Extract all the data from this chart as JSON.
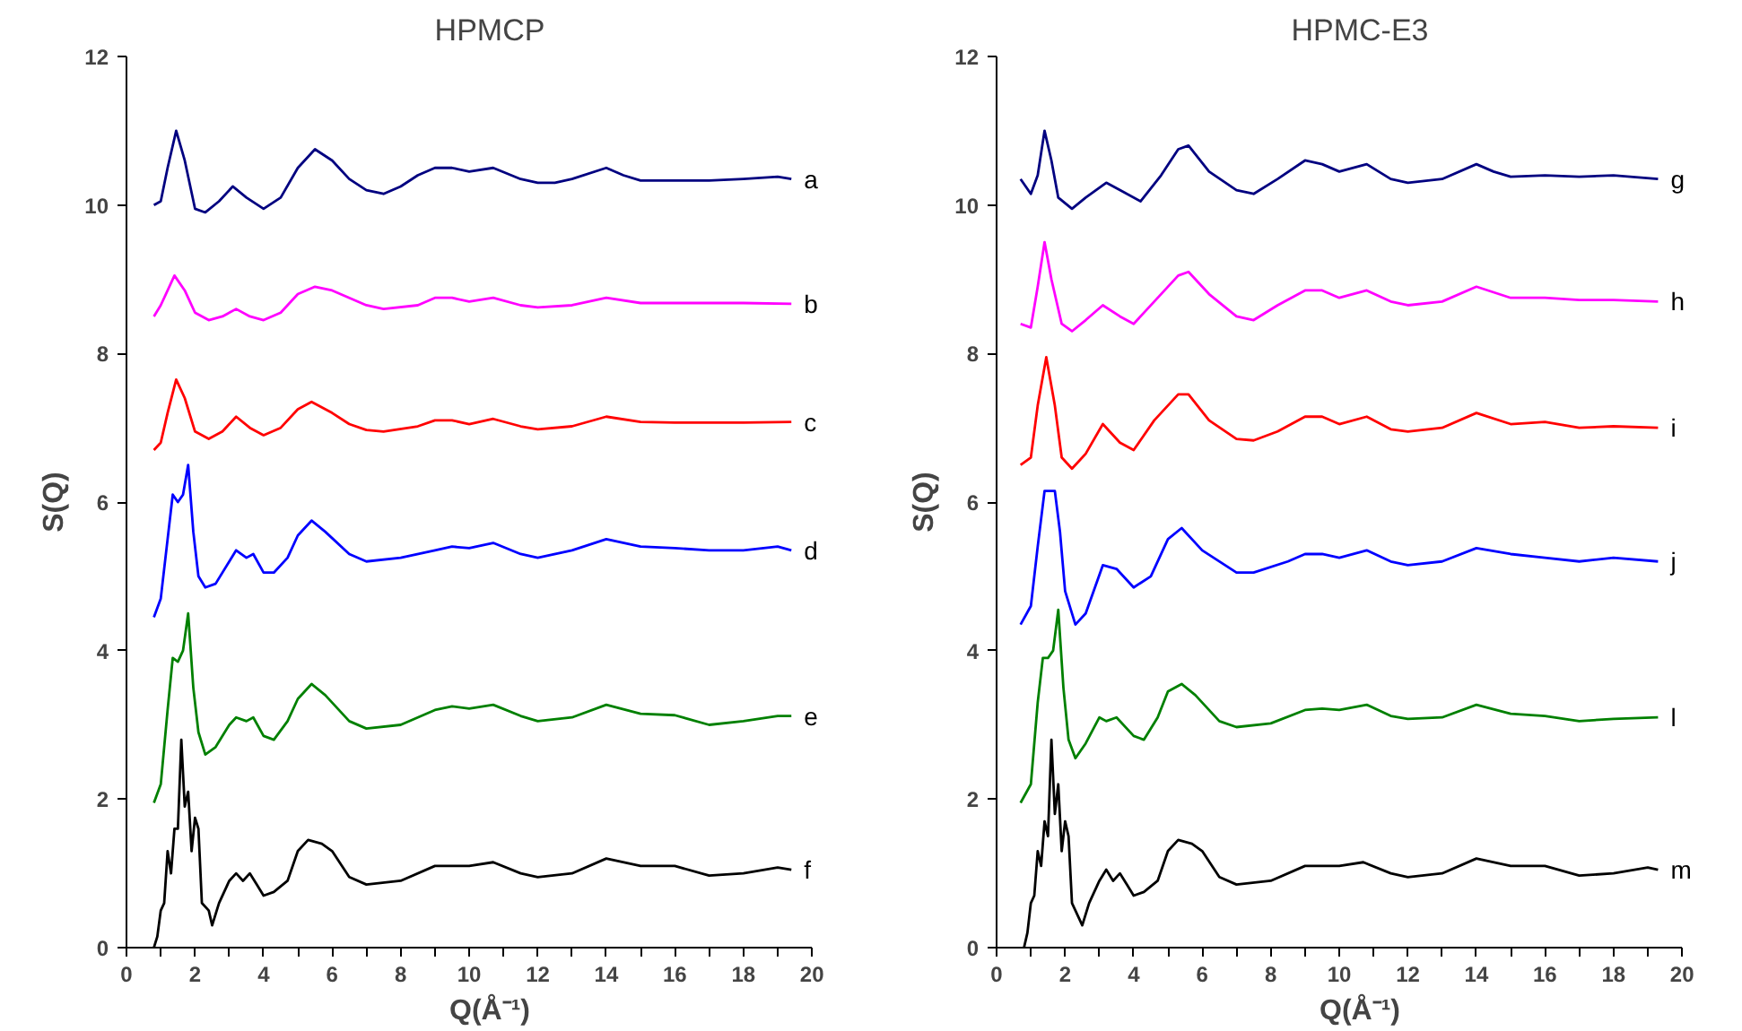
{
  "chart_data": [
    {
      "type": "line",
      "title": "HPMCP",
      "xlabel": "Q(Å⁻¹)",
      "ylabel": "S(Q)",
      "xlim": [
        0,
        20
      ],
      "ylim": [
        0,
        12
      ],
      "xticks": [
        0,
        {
          "value": 1,
          "label": null
        },
        2,
        {
          "value": 3,
          "label": null
        },
        4,
        {
          "value": 5,
          "label": null
        },
        6,
        {
          "value": 7,
          "label": null
        },
        8,
        {
          "value": 9,
          "label": null
        },
        10,
        {
          "value": 11,
          "label": null
        },
        12,
        {
          "value": 13,
          "label": null
        },
        14,
        {
          "value": 15,
          "label": null
        },
        16,
        {
          "value": 17,
          "label": null
        },
        18,
        {
          "value": 19,
          "label": null
        },
        20
      ],
      "yticks": [
        0,
        2,
        4,
        6,
        8,
        10,
        12
      ],
      "series": [
        {
          "name": "a",
          "color": "#000080",
          "x": [
            0.8,
            1.0,
            1.2,
            1.45,
            1.7,
            2.0,
            2.3,
            2.7,
            3.1,
            3.5,
            4.0,
            4.5,
            5.0,
            5.5,
            6.0,
            6.5,
            7.0,
            7.5,
            8.0,
            8.5,
            9.0,
            9.5,
            10.0,
            10.7,
            11.5,
            12.0,
            12.5,
            13.0,
            14.0,
            14.5,
            15.0,
            16.0,
            17.0,
            18.0,
            19.0,
            19.4
          ],
          "values": [
            10.0,
            10.05,
            10.5,
            11.0,
            10.6,
            9.95,
            9.9,
            10.05,
            10.25,
            10.1,
            9.95,
            10.1,
            10.5,
            10.75,
            10.6,
            10.35,
            10.2,
            10.15,
            10.25,
            10.4,
            10.5,
            10.5,
            10.45,
            10.5,
            10.35,
            10.3,
            10.3,
            10.35,
            10.5,
            10.4,
            10.33,
            10.33,
            10.33,
            10.35,
            10.38,
            10.35
          ]
        },
        {
          "name": "b",
          "color": "#ff00ff",
          "x": [
            0.8,
            1.0,
            1.4,
            1.7,
            2.0,
            2.4,
            2.8,
            3.2,
            3.6,
            4.0,
            4.5,
            5.0,
            5.5,
            6.0,
            6.5,
            7.0,
            7.5,
            8.5,
            9.0,
            9.5,
            10.0,
            10.7,
            11.5,
            12.0,
            13.0,
            14.0,
            15.0,
            16.0,
            17.0,
            18.0,
            19.4
          ],
          "values": [
            8.5,
            8.65,
            9.05,
            8.85,
            8.55,
            8.45,
            8.5,
            8.6,
            8.5,
            8.45,
            8.55,
            8.8,
            8.9,
            8.85,
            8.75,
            8.65,
            8.6,
            8.65,
            8.75,
            8.75,
            8.7,
            8.75,
            8.65,
            8.62,
            8.65,
            8.75,
            8.68,
            8.68,
            8.68,
            8.68,
            8.67
          ]
        },
        {
          "name": "c",
          "color": "#ff0000",
          "x": [
            0.8,
            1.0,
            1.2,
            1.45,
            1.7,
            2.0,
            2.4,
            2.8,
            3.2,
            3.6,
            4.0,
            4.5,
            5.0,
            5.4,
            6.0,
            6.5,
            7.0,
            7.5,
            8.5,
            9.0,
            9.5,
            10.0,
            10.7,
            11.5,
            12.0,
            13.0,
            14.0,
            15.0,
            16.0,
            17.0,
            18.0,
            19.4
          ],
          "values": [
            6.7,
            6.8,
            7.2,
            7.65,
            7.4,
            6.95,
            6.85,
            6.95,
            7.15,
            7.0,
            6.9,
            7.0,
            7.25,
            7.35,
            7.2,
            7.05,
            6.97,
            6.95,
            7.02,
            7.1,
            7.1,
            7.05,
            7.12,
            7.02,
            6.98,
            7.02,
            7.15,
            7.08,
            7.07,
            7.07,
            7.07,
            7.08
          ]
        },
        {
          "name": "d",
          "color": "#0000ff",
          "x": [
            0.8,
            1.0,
            1.2,
            1.35,
            1.5,
            1.65,
            1.8,
            1.95,
            2.1,
            2.3,
            2.6,
            3.0,
            3.2,
            3.5,
            3.7,
            4.0,
            4.3,
            4.7,
            5.0,
            5.4,
            5.8,
            6.5,
            7.0,
            8.0,
            9.0,
            9.5,
            10.0,
            10.7,
            11.5,
            12.0,
            13.0,
            14.0,
            15.0,
            16.0,
            17.0,
            18.0,
            19.0,
            19.4
          ],
          "values": [
            4.45,
            4.7,
            5.5,
            6.1,
            6.0,
            6.1,
            6.5,
            5.6,
            5.0,
            4.85,
            4.9,
            5.2,
            5.35,
            5.25,
            5.3,
            5.05,
            5.05,
            5.25,
            5.55,
            5.75,
            5.6,
            5.3,
            5.2,
            5.25,
            5.35,
            5.4,
            5.38,
            5.45,
            5.3,
            5.25,
            5.35,
            5.5,
            5.4,
            5.38,
            5.35,
            5.35,
            5.4,
            5.35
          ]
        },
        {
          "name": "e",
          "color": "#008000",
          "x": [
            0.8,
            1.0,
            1.2,
            1.35,
            1.5,
            1.65,
            1.8,
            1.95,
            2.1,
            2.3,
            2.6,
            3.0,
            3.2,
            3.5,
            3.7,
            4.0,
            4.3,
            4.7,
            5.0,
            5.4,
            5.8,
            6.5,
            7.0,
            8.0,
            9.0,
            9.5,
            10.0,
            10.7,
            11.5,
            12.0,
            13.0,
            14.0,
            15.0,
            16.0,
            17.0,
            18.0,
            19.0,
            19.4
          ],
          "values": [
            1.95,
            2.2,
            3.2,
            3.9,
            3.85,
            4.0,
            4.5,
            3.5,
            2.9,
            2.6,
            2.7,
            3.0,
            3.1,
            3.05,
            3.1,
            2.85,
            2.8,
            3.05,
            3.35,
            3.55,
            3.4,
            3.05,
            2.95,
            3.0,
            3.2,
            3.25,
            3.22,
            3.27,
            3.12,
            3.05,
            3.1,
            3.27,
            3.15,
            3.13,
            3.0,
            3.05,
            3.12,
            3.12
          ]
        },
        {
          "name": "f",
          "color": "#000000",
          "x": [
            0.8,
            0.9,
            1.0,
            1.1,
            1.2,
            1.3,
            1.4,
            1.5,
            1.6,
            1.7,
            1.8,
            1.9,
            2.0,
            2.1,
            2.2,
            2.4,
            2.5,
            2.7,
            3.0,
            3.2,
            3.4,
            3.6,
            3.8,
            4.0,
            4.3,
            4.7,
            5.0,
            5.3,
            5.7,
            6.0,
            6.5,
            7.0,
            8.0,
            9.0,
            9.5,
            10.0,
            10.7,
            11.5,
            12.0,
            13.0,
            14.0,
            15.0,
            16.0,
            17.0,
            18.0,
            19.0,
            19.4
          ],
          "values": [
            0.0,
            0.15,
            0.5,
            0.6,
            1.3,
            1.0,
            1.6,
            1.6,
            2.8,
            1.9,
            2.1,
            1.3,
            1.75,
            1.6,
            0.6,
            0.5,
            0.3,
            0.6,
            0.9,
            1.0,
            0.9,
            1.0,
            0.85,
            0.7,
            0.75,
            0.9,
            1.3,
            1.45,
            1.4,
            1.3,
            0.95,
            0.85,
            0.9,
            1.1,
            1.1,
            1.1,
            1.15,
            1.0,
            0.95,
            1.0,
            1.2,
            1.1,
            1.1,
            0.97,
            1.0,
            1.08,
            1.05
          ]
        }
      ]
    },
    {
      "type": "line",
      "title": "HPMC-E3",
      "xlabel": "Q(Å⁻¹)",
      "ylabel": "S(Q)",
      "xlim": [
        0,
        20
      ],
      "ylim": [
        0,
        12
      ],
      "xticks": [
        0,
        {
          "value": 1,
          "label": null
        },
        2,
        {
          "value": 3,
          "label": null
        },
        4,
        {
          "value": 5,
          "label": null
        },
        6,
        {
          "value": 7,
          "label": null
        },
        8,
        {
          "value": 9,
          "label": null
        },
        10,
        {
          "value": 11,
          "label": null
        },
        12,
        {
          "value": 13,
          "label": null
        },
        14,
        {
          "value": 15,
          "label": null
        },
        16,
        {
          "value": 17,
          "label": null
        },
        18,
        {
          "value": 19,
          "label": null
        },
        20
      ],
      "yticks": [
        0,
        2,
        4,
        6,
        8,
        10,
        12
      ],
      "series": [
        {
          "name": "g",
          "color": "#000080",
          "x": [
            0.7,
            1.0,
            1.2,
            1.4,
            1.6,
            1.8,
            2.2,
            2.6,
            3.2,
            3.6,
            4.2,
            4.8,
            5.3,
            5.6,
            6.2,
            7.0,
            7.5,
            8.2,
            9.0,
            9.5,
            10.0,
            10.8,
            11.5,
            12.0,
            13.0,
            14.0,
            14.5,
            15.0,
            16.0,
            17.0,
            18.0,
            19.3
          ],
          "values": [
            10.35,
            10.15,
            10.4,
            11.0,
            10.6,
            10.1,
            9.95,
            10.1,
            10.3,
            10.2,
            10.05,
            10.4,
            10.75,
            10.8,
            10.45,
            10.2,
            10.15,
            10.35,
            10.6,
            10.55,
            10.45,
            10.55,
            10.35,
            10.3,
            10.35,
            10.55,
            10.45,
            10.38,
            10.4,
            10.38,
            10.4,
            10.35
          ]
        },
        {
          "name": "h",
          "color": "#ff00ff",
          "x": [
            0.7,
            1.0,
            1.2,
            1.4,
            1.6,
            1.9,
            2.2,
            2.6,
            3.1,
            3.6,
            4.0,
            4.6,
            5.3,
            5.6,
            6.2,
            7.0,
            7.5,
            8.2,
            9.0,
            9.5,
            10.0,
            10.8,
            11.5,
            12.0,
            13.0,
            14.0,
            15.0,
            16.0,
            17.0,
            18.0,
            19.3
          ],
          "values": [
            8.4,
            8.35,
            8.9,
            9.5,
            9.0,
            8.4,
            8.3,
            8.45,
            8.65,
            8.5,
            8.4,
            8.7,
            9.05,
            9.1,
            8.8,
            8.5,
            8.45,
            8.65,
            8.85,
            8.85,
            8.75,
            8.85,
            8.7,
            8.65,
            8.7,
            8.9,
            8.75,
            8.75,
            8.72,
            8.72,
            8.7
          ]
        },
        {
          "name": "i",
          "color": "#ff0000",
          "x": [
            0.7,
            1.0,
            1.2,
            1.45,
            1.7,
            1.9,
            2.2,
            2.6,
            3.1,
            3.6,
            4.0,
            4.6,
            5.3,
            5.6,
            6.2,
            7.0,
            7.5,
            8.2,
            9.0,
            9.5,
            10.0,
            10.8,
            11.5,
            12.0,
            13.0,
            14.0,
            15.0,
            16.0,
            17.0,
            18.0,
            19.3
          ],
          "values": [
            6.5,
            6.6,
            7.3,
            7.95,
            7.3,
            6.6,
            6.45,
            6.65,
            7.05,
            6.8,
            6.7,
            7.1,
            7.45,
            7.45,
            7.1,
            6.85,
            6.83,
            6.95,
            7.15,
            7.15,
            7.05,
            7.15,
            6.98,
            6.95,
            7.0,
            7.2,
            7.05,
            7.08,
            7.0,
            7.02,
            7.0
          ]
        },
        {
          "name": "j",
          "color": "#0000ff",
          "x": [
            0.7,
            1.0,
            1.2,
            1.4,
            1.7,
            1.85,
            2.0,
            2.3,
            2.6,
            3.1,
            3.5,
            4.0,
            4.5,
            5.0,
            5.4,
            6.0,
            7.0,
            7.5,
            8.5,
            9.0,
            9.5,
            10.0,
            10.8,
            11.5,
            12.0,
            13.0,
            14.0,
            15.0,
            16.0,
            17.0,
            18.0,
            19.3
          ],
          "values": [
            4.35,
            4.6,
            5.4,
            6.15,
            6.15,
            5.6,
            4.8,
            4.35,
            4.5,
            5.15,
            5.1,
            4.85,
            5.0,
            5.5,
            5.65,
            5.35,
            5.05,
            5.05,
            5.2,
            5.3,
            5.3,
            5.25,
            5.35,
            5.2,
            5.15,
            5.2,
            5.38,
            5.3,
            5.25,
            5.2,
            5.25,
            5.2
          ]
        },
        {
          "name": "l",
          "color": "#008000",
          "x": [
            0.7,
            1.0,
            1.2,
            1.35,
            1.5,
            1.65,
            1.8,
            1.95,
            2.1,
            2.3,
            2.6,
            3.0,
            3.2,
            3.5,
            4.0,
            4.3,
            4.7,
            5.0,
            5.4,
            5.8,
            6.5,
            7.0,
            8.0,
            9.0,
            9.5,
            10.0,
            10.8,
            11.5,
            12.0,
            13.0,
            14.0,
            15.0,
            16.0,
            17.0,
            18.0,
            19.3
          ],
          "values": [
            1.95,
            2.2,
            3.3,
            3.9,
            3.9,
            4.0,
            4.55,
            3.5,
            2.8,
            2.55,
            2.75,
            3.1,
            3.05,
            3.1,
            2.85,
            2.8,
            3.1,
            3.45,
            3.55,
            3.4,
            3.05,
            2.97,
            3.02,
            3.2,
            3.22,
            3.2,
            3.27,
            3.12,
            3.08,
            3.1,
            3.27,
            3.15,
            3.12,
            3.05,
            3.08,
            3.1
          ]
        },
        {
          "name": "m",
          "color": "#000000",
          "x": [
            0.8,
            0.9,
            1.0,
            1.1,
            1.2,
            1.3,
            1.4,
            1.5,
            1.6,
            1.7,
            1.8,
            1.9,
            2.0,
            2.1,
            2.2,
            2.4,
            2.5,
            2.7,
            3.0,
            3.2,
            3.4,
            3.6,
            3.8,
            4.0,
            4.3,
            4.7,
            5.0,
            5.3,
            5.7,
            6.0,
            6.5,
            7.0,
            8.0,
            9.0,
            9.5,
            10.0,
            10.7,
            11.5,
            12.0,
            13.0,
            14.0,
            15.0,
            16.0,
            17.0,
            18.0,
            19.0,
            19.3
          ],
          "values": [
            0.0,
            0.2,
            0.6,
            0.7,
            1.3,
            1.1,
            1.7,
            1.5,
            2.8,
            1.8,
            2.2,
            1.3,
            1.7,
            1.5,
            0.6,
            0.4,
            0.3,
            0.6,
            0.9,
            1.05,
            0.9,
            1.0,
            0.85,
            0.7,
            0.75,
            0.9,
            1.3,
            1.45,
            1.4,
            1.3,
            0.95,
            0.85,
            0.9,
            1.1,
            1.1,
            1.1,
            1.15,
            1.0,
            0.95,
            1.0,
            1.2,
            1.1,
            1.1,
            0.97,
            1.0,
            1.08,
            1.05
          ]
        }
      ]
    }
  ]
}
